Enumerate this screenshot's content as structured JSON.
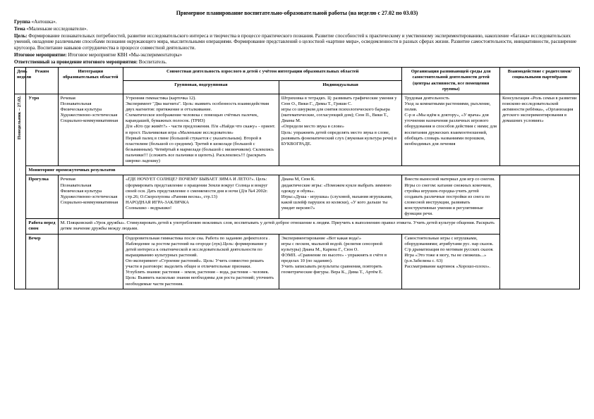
{
  "title": "Примерное планирование воспитательно-образовательной работы (на неделю с 27.02 по 03.03)",
  "group_label": "Группа",
  "group": "«Антошка».",
  "theme_label": "Тема",
  "theme": "«Маленькие исследователи».",
  "goal_label": "Цель:",
  "goal": "Формирование познавательных потребностей, развитие исследовательского интереса и творчества в процессе практического познания. Развитие способностей к практическому и умственному экспериментированию, накопление «багажа» исследовательских умений, овладение различными способами познания окружающего мира, мыслительными операциями. Формирование представлений о целостной «картине мира», осведомленности в разных сферах жизни. Развитие самостоятельности, инициативности, расширение кругозора. Воспитание навыков сотрудничества в процессе совместной деятельности.",
  "event_label": "Итоговое мероприятие:",
  "event": "Итоговое мероприятие КВН «Мы-экспериментаторы»",
  "resp_label": "Ответственный за проведение итогового мероприятия:",
  "resp": "Воспитатель.",
  "headers": {
    "day": "День недели",
    "regime": "Режим",
    "integration": "Интеграция образовательных областей",
    "joint": "Совместная деятельность взрослого и детей с учётом интеграции образовательных областей",
    "group": "Групповая, подгрупповая",
    "individual": "Индивидуальная",
    "org": "Организация развивающей среды для самостоятельной деятельности детей (центры активности, все помещения группы)",
    "parents": "Взаимодействие с родителями/ социальными партнёрами"
  },
  "day_label": "Понедельник – 27.02.",
  "rows": {
    "morning": {
      "regime": "Утро",
      "integration": "Речевая\nПознавательная\nФизическая культура\nХудожественно-эстетическая\nСоциально-коммуникативная",
      "group": "Утренняя гимнастика (карточка 12).\nЭксперимент \"Два магнита\". Цель: выявить особенность взаимодействия двух магнитов: притяжение и отталкивание.\nСхематическое изображение человека с помощью счётных палочек, карандашей, бумажных полосок. (ТРИЗ)\nД/и «Кто где живёт?» - части предложения. П/и «Найди что скажу» - ориент. в прост. Пальчиковая игра «Маленькие исследователи»\nПервый палец в глине (большой стукается с указательным). Второй в пластилине (большой со средним). Третий в шоколаде (большой с безымянным). Четвёртый в мармеладе (большой с мизинчиком). Склеились пальчики!!! (сложить все пальчики в щепоть). Расклеились!!! (раскрыть широко ладошку)",
      "individual": "Штриховка в тетрадях. Ц: развивать графические умения у Сюн О., Вики Г., Димы Т., Гриши С.\nигры со шнурком для снятия психологического барьера (математические, согласующий дом); Сюн П., Вики Т., Дианы М.\n«Определи место звука в слове»\nЦель: упражнять детей определять место звука в слове, развивать фонематический слух (звуковая культура речи) в БУКВОГРАДЕ.",
      "org": "Трудовая деятельность\nУход за комнатными растениями, рыхление, полив.\nС-р и «Мы идём к доктору», «У врача» для уточнения назначения различных игрового оборудования и способов действия с ними; для воспитания дружеских взаимоотношений, обобщать словарь названиями порошков, необходимых для лечения",
      "parents": "Консультация «Роль семьи в развитии поисково-исследовательской активности ребёнка», «Организация детского экспериментирования в домашних условиях»"
    },
    "monitoring": "Мониторинг промежуточных результатов",
    "walk": {
      "regime": "Прогулка",
      "integration": "Речевая\nПознавательная\nФизическая культура\nХудожественно-эстетическая\nСоциально-коммуникативная",
      "group": "«ГДЕ НОЧУЕТ СОЛНЦЕ? ПОЧЕМУ БЫВАЕТ ЗИМА И ЛЕТО?». Цель: сформировать представление о вращении Земли вокруг Солнца и вокруг своей оси. Дать представление о сменяемости дня и ночи (Д/в №4 2002г. стр.26; О.Скоролупова «Ранняя весна», стр.13)\nНАРОДНАЯ ИГРА-ЗАКЛИЧКА\nСолнышко - ведрышко!",
      "individual": "Диана М, Сюн К.\nдидактические игры: «Поможем кукле выбрать зимнюю одежду и обувь».\nИгры:«Душа - игрушка» (слуховой, махания игрушками, какой шлейф парушок из коляски), «У кого дальше ты увидит версию?»",
      "org": "Внести выносной материал для игр со снегом. Игры со снегом: катание снежных комочков, стройка игрушек-городка-учить детей создавать различные постройки из снега по словесной инструкции, развивать конструктивные умения и регулятивные функции речи.",
      "parents": ""
    },
    "before_sleep": {
      "regime": "Работа перед сном",
      "text": "М. Пляцковский «Урок дружбы». Стимулировать детей к употреблению вежливых слов, воспитывать у детей доброе отношение к людям. Приучить к выполнению правил этикета. Учить детей культуре общения. Раскрыть детям значение дружбы между людьми."
    },
    "evening": {
      "regime": "Вечер",
      "group": "Оздоровительная гимнастика после сна. Работа по заданию дефектолога . Наблюдение за ростом растений на огороде (лук).Цель: формирование у детей интереса к опытнической и исследовательской деятельности по выращиванию культурных растений.\nОп-эксперимент «Строение растений». Цель: Учить совместно решать участи в разговоре: выделить общее и отличительные признаки.\nУглублять знания: растения – земля, растения – вода, растения – человек. Цель: Выявить насколько знания необходимы для роста растений; уточнить необходимые части растения.",
      "individual": "Экспериментирование «Вот какая вода!»\nигры с песком, мыльной водой. (религия сенсорной культуры) Диана М., Карина Г., Сюн О.\nФЭМП. «Сравнение по высоте» - упражнять в счёте в пределах 10 (по заданию).\nУчить записывать результаты сравнения, повторять геометрические фигуры. Вера К., Дима Т., Артём Е.",
      "org": "Самостоятельные игры с игрушками, оборудованиями; атрибутами рус. нар сказок.\nС/р драматизация по мотивам русских сказок\nИгра «Это тоже я могу, ты не сможешь...» (р.н.Забелина с. 63)\nРассматривание картинок «Хорошо-плохо».",
      "parents": ""
    }
  }
}
